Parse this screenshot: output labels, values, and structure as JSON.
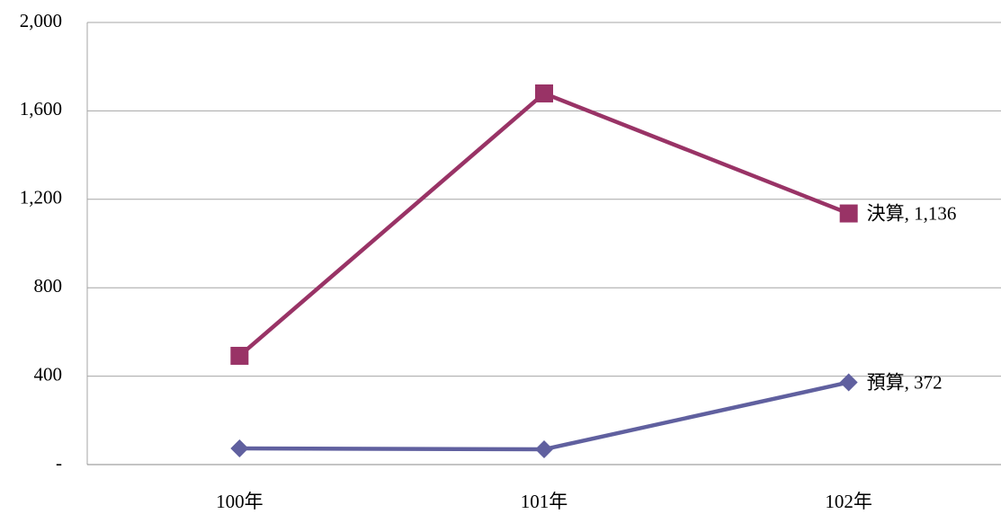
{
  "chart_data": {
    "type": "line",
    "categories": [
      "100年",
      "101年",
      "102年"
    ],
    "series": [
      {
        "name": "決算",
        "color": "#993366",
        "marker": "square",
        "values": [
          492,
          1679,
          1136
        ],
        "value_labels": [
          null,
          null,
          "決算, 1,136"
        ]
      },
      {
        "name": "預算",
        "color": "#60609f",
        "marker": "diamond",
        "values": [
          73,
          69,
          372
        ],
        "value_labels": [
          null,
          null,
          "預算, 372"
        ]
      }
    ],
    "ylim": [
      0,
      2000
    ],
    "yticks": [
      {
        "value": 0,
        "label": "-"
      },
      400,
      800,
      {
        "value": 1200,
        "label": "1,200"
      },
      {
        "value": 1600,
        "label": "1,600"
      },
      {
        "value": 2000,
        "label": "2,000"
      }
    ],
    "grid": true
  }
}
